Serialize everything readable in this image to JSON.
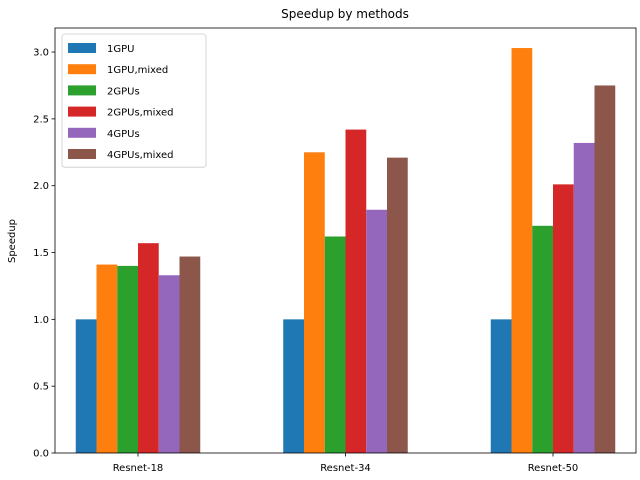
{
  "chart_data": {
    "type": "bar",
    "title": "Speedup by methods",
    "xlabel": "",
    "ylabel": "Speedup",
    "categories": [
      "Resnet-18",
      "Resnet-34",
      "Resnet-50"
    ],
    "ylim": [
      0,
      3.18
    ],
    "yticks": [
      "0.0",
      "0.5",
      "1.0",
      "1.5",
      "2.0",
      "2.5",
      "3.0"
    ],
    "grid": false,
    "legend_position": "top-left",
    "series": [
      {
        "name": "1GPU",
        "color": "#1f77b4",
        "values": [
          1.0,
          1.0,
          1.0
        ]
      },
      {
        "name": "1GPU,mixed",
        "color": "#ff7f0e",
        "values": [
          1.41,
          2.25,
          3.03
        ]
      },
      {
        "name": "2GPUs",
        "color": "#2ca02c",
        "values": [
          1.4,
          1.62,
          1.7
        ]
      },
      {
        "name": "2GPUs,mixed",
        "color": "#d62728",
        "values": [
          1.57,
          2.42,
          2.01
        ]
      },
      {
        "name": "4GPUs",
        "color": "#9467bd",
        "values": [
          1.33,
          1.82,
          2.32
        ]
      },
      {
        "name": "4GPUs,mixed",
        "color": "#8c564b",
        "values": [
          1.47,
          2.21,
          2.75
        ]
      }
    ]
  }
}
